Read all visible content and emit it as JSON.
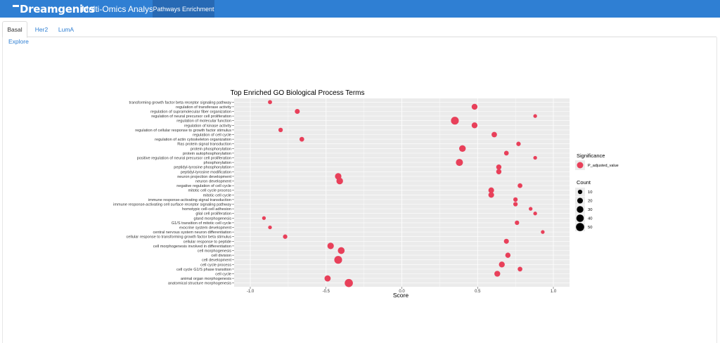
{
  "header": {
    "brand": "Dreamgenics",
    "app_title": "Multi-Omics Analysis",
    "nav_tab": "Pathways Enrichment"
  },
  "subtabs": [
    "Basal",
    "Her2",
    "LumA"
  ],
  "active_subtab": "Basal",
  "explore_link": "Explore",
  "colors": {
    "header": "#2f7fd3",
    "nav_active": "#2769b4",
    "point": "#e8405a",
    "panel": "#ebebeb"
  },
  "chart_data": {
    "type": "scatter",
    "title": "Top Enriched GO Biological Process Terms",
    "xlabel": "Score",
    "ylabel": "",
    "xlim": [
      -1.0,
      1.0
    ],
    "xticks": [
      "-1.0",
      "-0.5",
      "0.0",
      "0.5",
      "1.0"
    ],
    "grid": true,
    "categories": [
      "transforming growth factor beta receptor signaling pathway",
      "regulation of transferase activity",
      "regulation of supramolecular fiber organization",
      "regulation of neural precursor cell proliferation",
      "regulation of molecular function",
      "regulation of kinase activity",
      "regulation of cellular response to growth factor stimulus",
      "regulation of cell cycle",
      "regulation of actin cytoskeleton organization",
      "Ras protein signal transduction",
      "protein phosphorylation",
      "protein autophosphorylation",
      "positive regulation of neural precursor cell proliferation",
      "phosphorylation",
      "peptidyl-tyrosine phosphorylation",
      "peptidyl-tyrosine modification",
      "neuron projection development",
      "neuron development",
      "negative regulation of cell cycle",
      "mitotic cell cycle process",
      "mitotic cell cycle",
      "immune response-activating signal transduction",
      "immune response-activating cell surface receptor signaling pathway",
      "homotypic cell-cell adhesion",
      "glial cell proliferation",
      "gland morphogenesis",
      "G1/S transition of mitotic cell cycle",
      "exocrine system development",
      "central nervous system neuron differentiation",
      "cellular response to transforming growth factor beta stimulus",
      "cellular response to peptide",
      "cell morphogenesis involved in differentiation",
      "cell morphogenesis",
      "cell division",
      "cell development",
      "cell cycle process",
      "cell cycle G1/S phase transition",
      "cell cycle",
      "animal organ morphogenesis",
      "anatomical structure morphogenesis"
    ],
    "x": [
      -0.87,
      0.48,
      -0.69,
      0.88,
      0.35,
      0.48,
      -0.8,
      0.61,
      -0.66,
      0.77,
      0.4,
      0.69,
      0.88,
      0.38,
      0.64,
      0.64,
      -0.42,
      -0.41,
      0.78,
      0.59,
      0.59,
      0.75,
      0.75,
      0.85,
      0.88,
      -0.91,
      0.76,
      -0.87,
      0.93,
      -0.77,
      0.69,
      -0.47,
      -0.4,
      0.7,
      -0.42,
      0.66,
      0.78,
      0.63,
      -0.49,
      -0.35
    ],
    "count": [
      8,
      22,
      14,
      6,
      45,
      22,
      10,
      18,
      12,
      10,
      30,
      12,
      6,
      35,
      16,
      16,
      28,
      30,
      12,
      20,
      20,
      10,
      10,
      6,
      6,
      6,
      10,
      6,
      6,
      10,
      14,
      28,
      32,
      16,
      45,
      22,
      12,
      22,
      25,
      50
    ],
    "legend": {
      "significance_title": "Significance",
      "significance_label": "P_adjusted_value",
      "count_title": "Count",
      "count_values": [
        10,
        20,
        30,
        40,
        50
      ]
    }
  }
}
